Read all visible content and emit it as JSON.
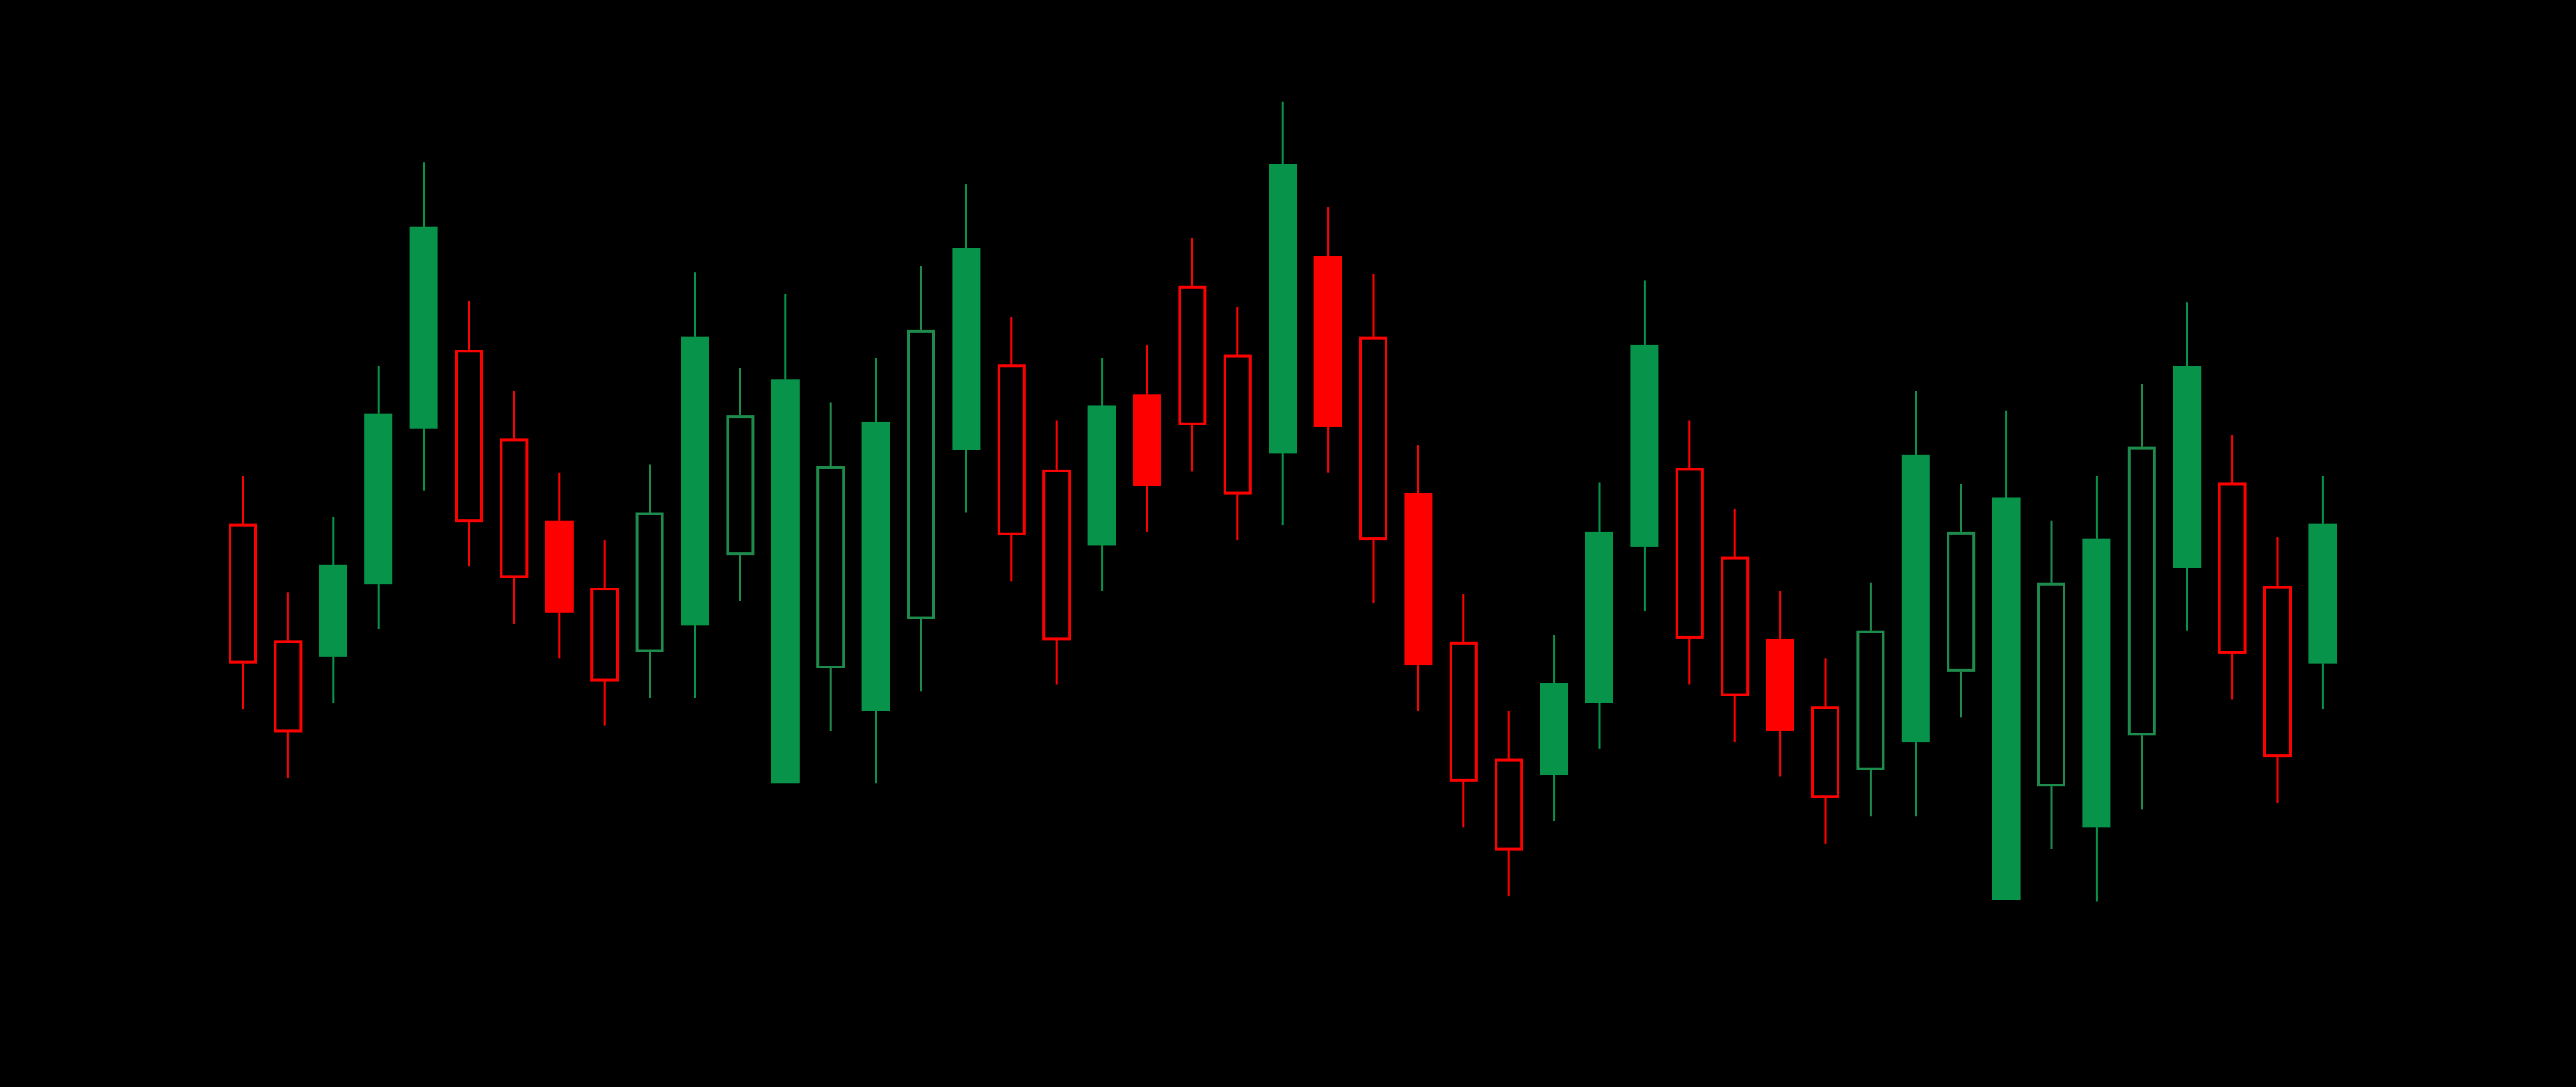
{
  "chart_data": {
    "type": "candlestick",
    "title": "",
    "xlabel": "",
    "ylabel": "",
    "ylim": [
      0,
      66.2
    ],
    "grid": false,
    "legend": "none",
    "colors": {
      "up": "#07934a",
      "up_outline": "#1e8a4c",
      "down": "#ff0000",
      "background": "#000000"
    },
    "fields": [
      "open",
      "high",
      "low",
      "close"
    ],
    "candles": [
      [
        34.3,
        37.2,
        23.0,
        25.8
      ],
      [
        27.2,
        30.1,
        18.8,
        21.6
      ],
      [
        26.2,
        34.7,
        23.4,
        31.8
      ],
      [
        30.6,
        43.9,
        27.9,
        41.0
      ],
      [
        40.1,
        56.3,
        36.3,
        52.4
      ],
      [
        44.9,
        47.9,
        31.7,
        34.4
      ],
      [
        39.5,
        42.4,
        28.2,
        31.0
      ],
      [
        34.5,
        37.4,
        26.1,
        28.9
      ],
      [
        30.4,
        33.3,
        22.0,
        24.7
      ],
      [
        26.5,
        37.9,
        23.7,
        35.0
      ],
      [
        28.1,
        49.6,
        23.7,
        45.7
      ],
      [
        32.4,
        43.8,
        29.6,
        40.9
      ],
      [
        18.5,
        48.3,
        18.5,
        43.1
      ],
      [
        25.5,
        41.7,
        21.7,
        37.8
      ],
      [
        22.9,
        44.4,
        18.5,
        40.5
      ],
      [
        28.5,
        50.0,
        24.1,
        46.1
      ],
      [
        38.8,
        55.0,
        35.0,
        51.1
      ],
      [
        44.0,
        46.9,
        30.8,
        33.6
      ],
      [
        37.6,
        40.6,
        24.5,
        27.2
      ],
      [
        33.0,
        44.4,
        30.2,
        41.5
      ],
      [
        42.2,
        45.2,
        33.8,
        36.6
      ],
      [
        48.8,
        51.7,
        37.5,
        40.3
      ],
      [
        44.6,
        47.5,
        33.3,
        36.1
      ],
      [
        38.6,
        60.0,
        34.2,
        56.2
      ],
      [
        50.6,
        53.6,
        37.4,
        40.2
      ],
      [
        45.7,
        49.5,
        29.5,
        33.3
      ],
      [
        36.2,
        39.1,
        22.9,
        25.7
      ],
      [
        27.1,
        30.0,
        15.8,
        18.6
      ],
      [
        20.0,
        22.9,
        11.6,
        14.4
      ],
      [
        19.0,
        27.5,
        16.2,
        24.6
      ],
      [
        23.4,
        36.8,
        20.6,
        33.8
      ],
      [
        32.9,
        49.1,
        29.0,
        45.2
      ],
      [
        37.7,
        40.6,
        24.5,
        27.3
      ],
      [
        32.3,
        35.2,
        21.0,
        23.8
      ],
      [
        27.3,
        30.2,
        18.9,
        21.7
      ],
      [
        23.2,
        26.1,
        14.8,
        17.6
      ],
      [
        19.3,
        30.7,
        16.5,
        27.8
      ],
      [
        21.0,
        42.4,
        16.5,
        38.5
      ],
      [
        25.3,
        36.7,
        22.5,
        33.8
      ],
      [
        11.4,
        41.2,
        11.4,
        35.9
      ],
      [
        18.3,
        34.5,
        14.5,
        30.7
      ],
      [
        15.8,
        37.2,
        11.3,
        33.4
      ],
      [
        21.4,
        42.8,
        16.9,
        39.0
      ],
      [
        31.6,
        47.8,
        27.8,
        43.9
      ],
      [
        36.8,
        39.7,
        23.6,
        26.4
      ],
      [
        30.5,
        33.5,
        17.3,
        20.1
      ],
      [
        25.8,
        37.2,
        23.0,
        34.3
      ]
    ],
    "hollow": [
      true,
      true,
      false,
      false,
      false,
      true,
      true,
      false,
      true,
      true,
      false,
      true,
      false,
      true,
      false,
      true,
      false,
      true,
      true,
      false,
      false,
      true,
      true,
      false,
      false,
      true,
      false,
      true,
      true,
      false,
      false,
      false,
      true,
      true,
      false,
      true,
      true,
      false,
      true,
      false,
      true,
      false,
      true,
      false,
      true,
      true,
      false
    ]
  }
}
